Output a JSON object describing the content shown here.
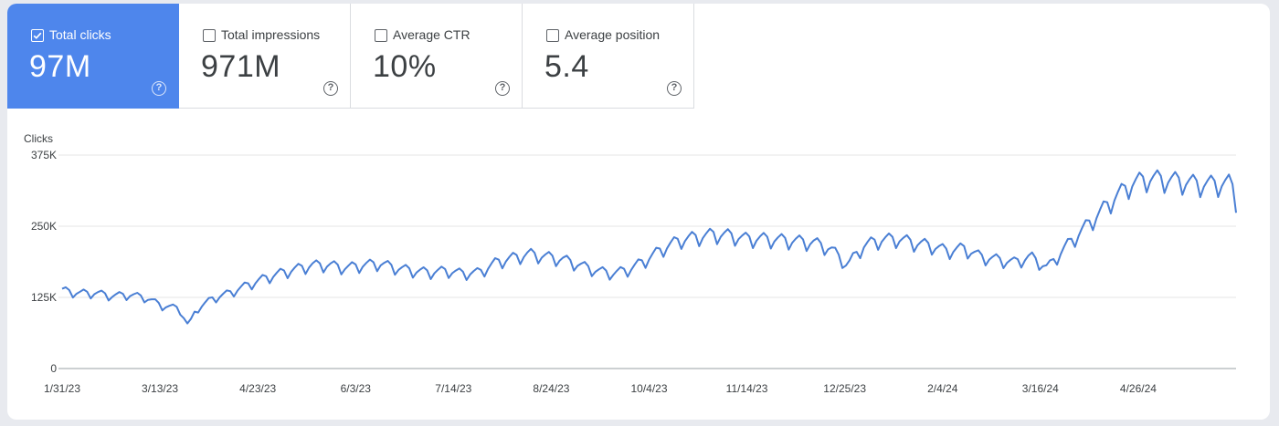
{
  "metrics": [
    {
      "label": "Total clicks",
      "value": "97M",
      "checked": true,
      "help_glyph": "?"
    },
    {
      "label": "Total impressions",
      "value": "971M",
      "checked": false,
      "help_glyph": "?"
    },
    {
      "label": "Average CTR",
      "value": "10%",
      "checked": false,
      "help_glyph": "?"
    },
    {
      "label": "Average position",
      "value": "5.4",
      "checked": false,
      "help_glyph": "?"
    }
  ],
  "colors": {
    "accent": "#4e86ec",
    "line": "#4a7fd4",
    "grid": "#e6e6e6"
  },
  "chart_data": {
    "type": "line",
    "ylabel": "Clicks",
    "ylim": [
      0,
      375000
    ],
    "yticks": [
      {
        "value": 0,
        "label": "0"
      },
      {
        "value": 125000,
        "label": "125K"
      },
      {
        "value": 250000,
        "label": "250K"
      },
      {
        "value": 375000,
        "label": "375K"
      }
    ],
    "xlim": [
      "2023-01-31",
      "2024-06-06"
    ],
    "xticks": [
      "1/31/23",
      "3/13/23",
      "4/23/23",
      "6/3/23",
      "7/14/23",
      "8/24/23",
      "10/4/23",
      "11/14/23",
      "12/25/23",
      "2/4/24",
      "3/16/24",
      "4/26/24"
    ],
    "series": [
      {
        "x": [
          "2023-01-31",
          "2023-02-07",
          "2023-02-14",
          "2023-02-21",
          "2023-02-28",
          "2023-03-07",
          "2023-03-14",
          "2023-03-21",
          "2023-03-25",
          "2023-03-28",
          "2023-04-04",
          "2023-04-11",
          "2023-04-18",
          "2023-04-25",
          "2023-05-02",
          "2023-05-09",
          "2023-05-16",
          "2023-05-23",
          "2023-05-30",
          "2023-06-06",
          "2023-06-13",
          "2023-06-20",
          "2023-06-27",
          "2023-07-04",
          "2023-07-11",
          "2023-07-18",
          "2023-07-25",
          "2023-08-01",
          "2023-08-08",
          "2023-08-15",
          "2023-08-22",
          "2023-08-29",
          "2023-09-05",
          "2023-09-12",
          "2023-09-19",
          "2023-09-26",
          "2023-10-03",
          "2023-10-10",
          "2023-10-17",
          "2023-10-24",
          "2023-10-31",
          "2023-11-07",
          "2023-11-14",
          "2023-11-21",
          "2023-11-28",
          "2023-12-05",
          "2023-12-12",
          "2023-12-19",
          "2023-12-26",
          "2024-01-02",
          "2024-01-09",
          "2024-01-16",
          "2024-01-23",
          "2024-01-30",
          "2024-02-06",
          "2024-02-13",
          "2024-02-20",
          "2024-02-27",
          "2024-03-05",
          "2024-03-12",
          "2024-03-19",
          "2024-03-26",
          "2024-04-02",
          "2024-04-09",
          "2024-04-16",
          "2024-04-23",
          "2024-04-30",
          "2024-05-07",
          "2024-05-14",
          "2024-05-21",
          "2024-05-28",
          "2024-06-04",
          "2024-06-06"
        ],
        "y": [
          140000,
          135000,
          135000,
          130000,
          132000,
          127000,
          112000,
          108000,
          75000,
          105000,
          125000,
          135000,
          148000,
          160000,
          170000,
          178000,
          185000,
          185000,
          180000,
          185000,
          188000,
          180000,
          175000,
          172000,
          175000,
          170000,
          172000,
          190000,
          198000,
          205000,
          200000,
          195000,
          185000,
          175000,
          170000,
          178000,
          195000,
          215000,
          230000,
          235000,
          240000,
          238000,
          232000,
          232000,
          230000,
          228000,
          225000,
          215000,
          185000,
          220000,
          230000,
          232000,
          225000,
          220000,
          210000,
          215000,
          200000,
          195000,
          190000,
          200000,
          180000,
          215000,
          245000,
          275000,
          305000,
          330000,
          340000,
          338000,
          335000,
          330000,
          330000,
          332000,
          300000
        ]
      }
    ]
  }
}
